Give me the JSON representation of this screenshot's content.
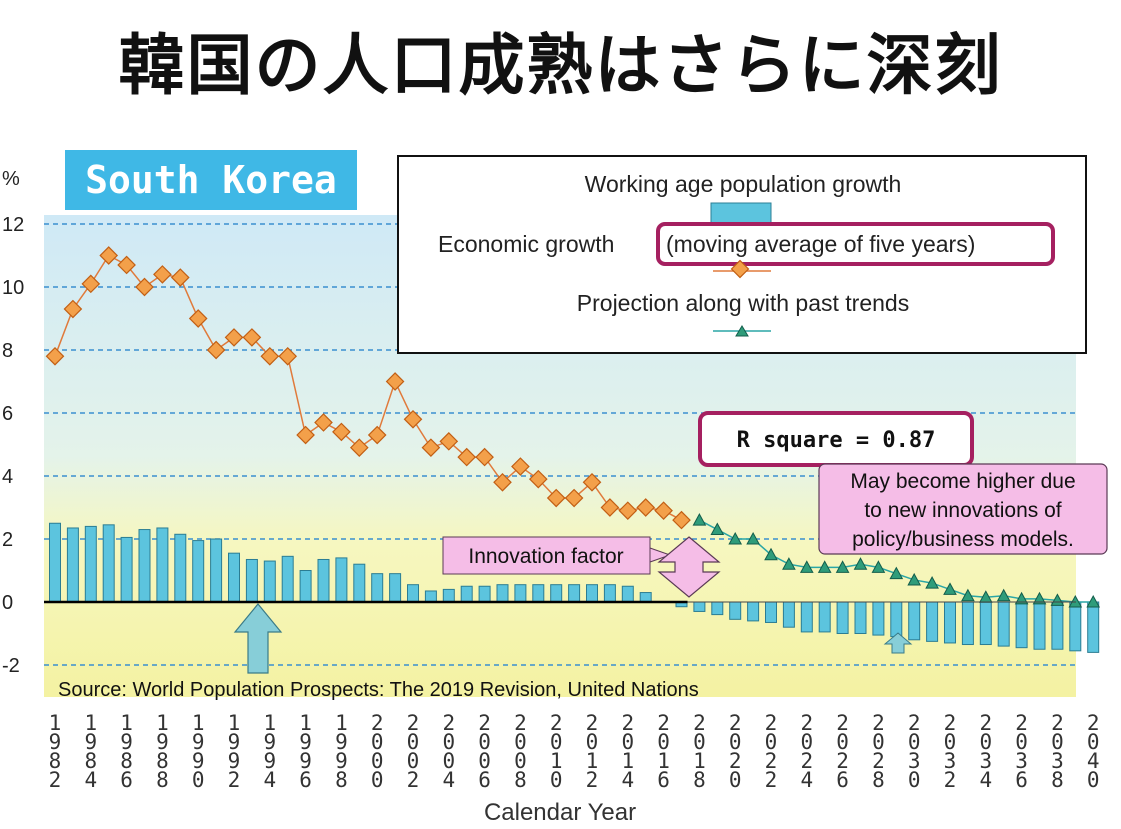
{
  "page_title": "韓国の人口成熟はさらに深刻",
  "chart_data": {
    "type": "bar+line",
    "panel_label": "South Korea",
    "y_unit": "%",
    "ylim": [
      -2.5,
      12
    ],
    "yticks": [
      12,
      10,
      8,
      6,
      4,
      2,
      0,
      -2
    ],
    "ytick_labels": [
      "12",
      "10",
      "8",
      "6",
      "4",
      "2",
      "0",
      "-2"
    ],
    "xlabel": "Calendar Year",
    "x_start": 1982,
    "x_end": 2040,
    "x_tick_labels": [
      "1982",
      "1984",
      "1986",
      "1988",
      "1990",
      "1992",
      "1994",
      "1996",
      "1998",
      "2000",
      "2002",
      "2004",
      "2006",
      "2008",
      "2010",
      "2012",
      "2014",
      "2016",
      "2018",
      "2020",
      "2022",
      "2024",
      "2026",
      "2028",
      "2030",
      "2032",
      "2034",
      "2036",
      "2038",
      "2040"
    ],
    "legend": {
      "working_age": "Working age population growth",
      "economic_prefix": "Economic growth",
      "economic_boxed": "(moving average of five years)",
      "projection": "Projection along with past trends"
    },
    "series": [
      {
        "name": "Working age population growth",
        "kind": "bar",
        "x": [
          1982,
          1983,
          1984,
          1985,
          1986,
          1987,
          1988,
          1989,
          1990,
          1991,
          1992,
          1993,
          1994,
          1995,
          1996,
          1997,
          1998,
          1999,
          2000,
          2001,
          2002,
          2003,
          2004,
          2005,
          2006,
          2007,
          2008,
          2009,
          2010,
          2011,
          2012,
          2013,
          2014,
          2015,
          2016,
          2017,
          2018,
          2019,
          2020,
          2021,
          2022,
          2023,
          2024,
          2025,
          2026,
          2027,
          2028,
          2029,
          2030,
          2031,
          2032,
          2033,
          2034,
          2035,
          2036,
          2037,
          2038,
          2039,
          2040
        ],
        "values": [
          2.5,
          2.35,
          2.4,
          2.45,
          2.05,
          2.3,
          2.35,
          2.15,
          1.95,
          2.0,
          1.55,
          1.35,
          1.3,
          1.45,
          1.0,
          1.35,
          1.4,
          1.2,
          0.9,
          0.9,
          0.55,
          0.35,
          0.4,
          0.5,
          0.5,
          0.55,
          0.55,
          0.55,
          0.55,
          0.55,
          0.55,
          0.55,
          0.5,
          0.3,
          0.0,
          -0.15,
          -0.3,
          -0.4,
          -0.55,
          -0.6,
          -0.65,
          -0.8,
          -0.95,
          -0.95,
          -1.0,
          -1.0,
          -1.05,
          -1.1,
          -1.2,
          -1.25,
          -1.3,
          -1.35,
          -1.35,
          -1.4,
          -1.45,
          -1.5,
          -1.5,
          -1.55,
          -1.6
        ]
      },
      {
        "name": "Economic growth (moving average of five years)",
        "kind": "line",
        "x": [
          1982,
          1983,
          1984,
          1985,
          1986,
          1987,
          1988,
          1989,
          1990,
          1991,
          1992,
          1993,
          1994,
          1995,
          1996,
          1997,
          1998,
          1999,
          2000,
          2001,
          2002,
          2003,
          2004,
          2005,
          2006,
          2007,
          2008,
          2009,
          2010,
          2011,
          2012,
          2013,
          2014,
          2015,
          2016,
          2017
        ],
        "values": [
          7.8,
          9.3,
          10.1,
          11.0,
          10.7,
          10.0,
          10.4,
          10.3,
          9.0,
          8.0,
          8.4,
          8.4,
          7.8,
          7.8,
          5.3,
          5.7,
          5.4,
          4.9,
          5.3,
          7.0,
          5.8,
          4.9,
          5.1,
          4.6,
          4.6,
          3.8,
          4.3,
          3.9,
          3.3,
          3.3,
          3.8,
          3.0,
          2.9,
          3.0,
          2.9,
          2.6
        ]
      },
      {
        "name": "Projection along with past trends",
        "kind": "line",
        "x": [
          2018,
          2019,
          2020,
          2021,
          2022,
          2023,
          2024,
          2025,
          2026,
          2027,
          2028,
          2029,
          2030,
          2031,
          2032,
          2033,
          2034,
          2035,
          2036,
          2037,
          2038,
          2039,
          2040
        ],
        "values": [
          2.6,
          2.3,
          2.0,
          2.0,
          1.5,
          1.2,
          1.1,
          1.1,
          1.1,
          1.2,
          1.1,
          0.9,
          0.7,
          0.6,
          0.4,
          0.2,
          0.15,
          0.2,
          0.1,
          0.1,
          0.05,
          0.0,
          0.0
        ]
      }
    ],
    "annotations": {
      "r_square": "R square = 0.87",
      "innovation": "Innovation factor",
      "higher_note": [
        "May become higher due",
        "to new innovations of",
        "policy/business models."
      ],
      "source": "Source: World Population Prospects: The 2019 Revision, United Nations"
    }
  }
}
